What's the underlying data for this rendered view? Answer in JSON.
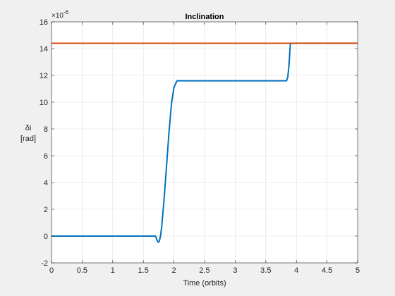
{
  "chart_data": {
    "type": "line",
    "title": "Inclination",
    "xlabel": "Time (orbits)",
    "ylabel_symbol": "δi",
    "ylabel_unit": "[rad]",
    "y_exponent": "×10",
    "y_exponent_power": "-6",
    "xlim": [
      0,
      5
    ],
    "ylim": [
      -2,
      16
    ],
    "xticks": [
      0,
      0.5,
      1,
      1.5,
      2,
      2.5,
      3,
      3.5,
      4,
      4.5,
      5
    ],
    "xtick_labels": [
      "0",
      "0.5",
      "1",
      "1.5",
      "2",
      "2.5",
      "3",
      "3.5",
      "4",
      "4.5",
      "5"
    ],
    "yticks": [
      -2,
      0,
      2,
      4,
      6,
      8,
      10,
      12,
      14,
      16
    ],
    "ytick_labels": [
      "-2",
      "0",
      "2",
      "4",
      "6",
      "8",
      "10",
      "12",
      "14",
      "16"
    ],
    "grid": true,
    "background": "#f0f0f0",
    "axes_background": "#ffffff",
    "series": [
      {
        "color": "#0072bd",
        "x": [
          0,
          0.5,
          1.0,
          1.5,
          1.7,
          1.72,
          1.74,
          1.76,
          1.78,
          1.8,
          1.84,
          1.88,
          1.92,
          1.96,
          2.0,
          2.05,
          2.5,
          3.0,
          3.5,
          3.84,
          3.86,
          3.88,
          3.9,
          3.92,
          4.5,
          5.0
        ],
        "y": [
          0,
          0,
          0,
          0,
          0,
          -0.25,
          -0.45,
          -0.4,
          0,
          0.7,
          2.8,
          5.3,
          7.8,
          9.9,
          11.1,
          11.6,
          11.6,
          11.6,
          11.6,
          11.6,
          11.9,
          12.8,
          14.3,
          14.4,
          14.4,
          14.4
        ]
      },
      {
        "color": "#d95319",
        "x": [
          0,
          5
        ],
        "y": [
          14.4,
          14.4
        ]
      }
    ]
  }
}
